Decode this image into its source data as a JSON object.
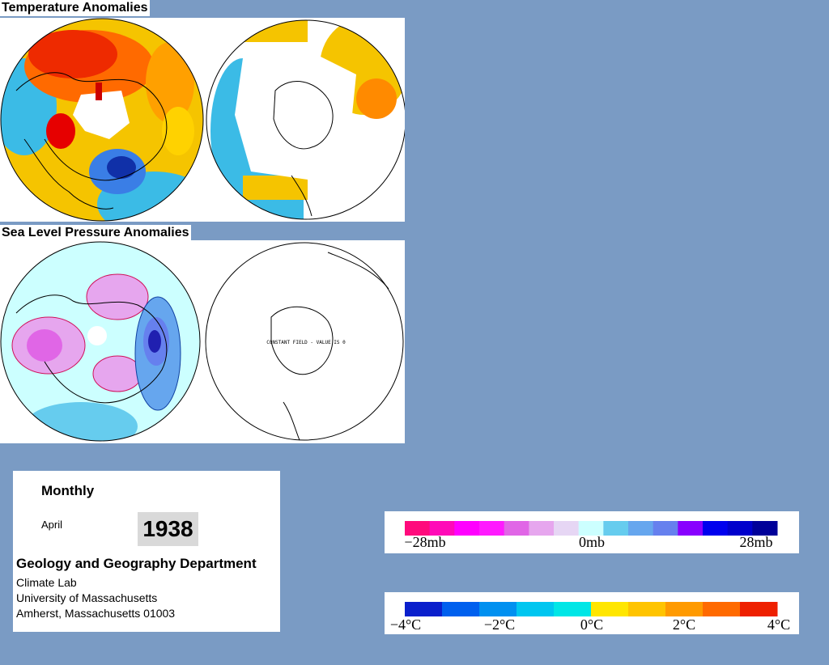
{
  "titles": {
    "temperature": "Temperature Anomalies",
    "pressure": "Sea Level Pressure Anomalies"
  },
  "map_annotation": "CONSTANT FIELD - VALUE IS 0",
  "info": {
    "period": "Monthly",
    "month": "April",
    "year": "1938",
    "department": "Geology and Geography Department",
    "lab": "Climate Lab",
    "university": "University of Massachusetts",
    "address": "Amherst, Massachusetts 01003"
  },
  "pressure_legend": {
    "labels": [
      "−28mb",
      "0mb",
      "28mb"
    ],
    "colors": [
      "#ff0a7c",
      "#ff0ab8",
      "#ff00ff",
      "#ff1aff",
      "#e066e6",
      "#e6a6ee",
      "#e6d6f4",
      "#ccffff",
      "#66ccee",
      "#66a6ee",
      "#6680ee",
      "#8800ff",
      "#0000ee",
      "#0000cc",
      "#000099"
    ]
  },
  "temperature_legend": {
    "labels": [
      "−4°C",
      "−2°C",
      "0°C",
      "2°C",
      "4°C"
    ],
    "colors": [
      "#0a1fcc",
      "#0060ee",
      "#0090f0",
      "#00c6f0",
      "#00e6e6",
      "#ffe600",
      "#ffc400",
      "#ff9a00",
      "#ff6a00",
      "#ee2000"
    ]
  }
}
